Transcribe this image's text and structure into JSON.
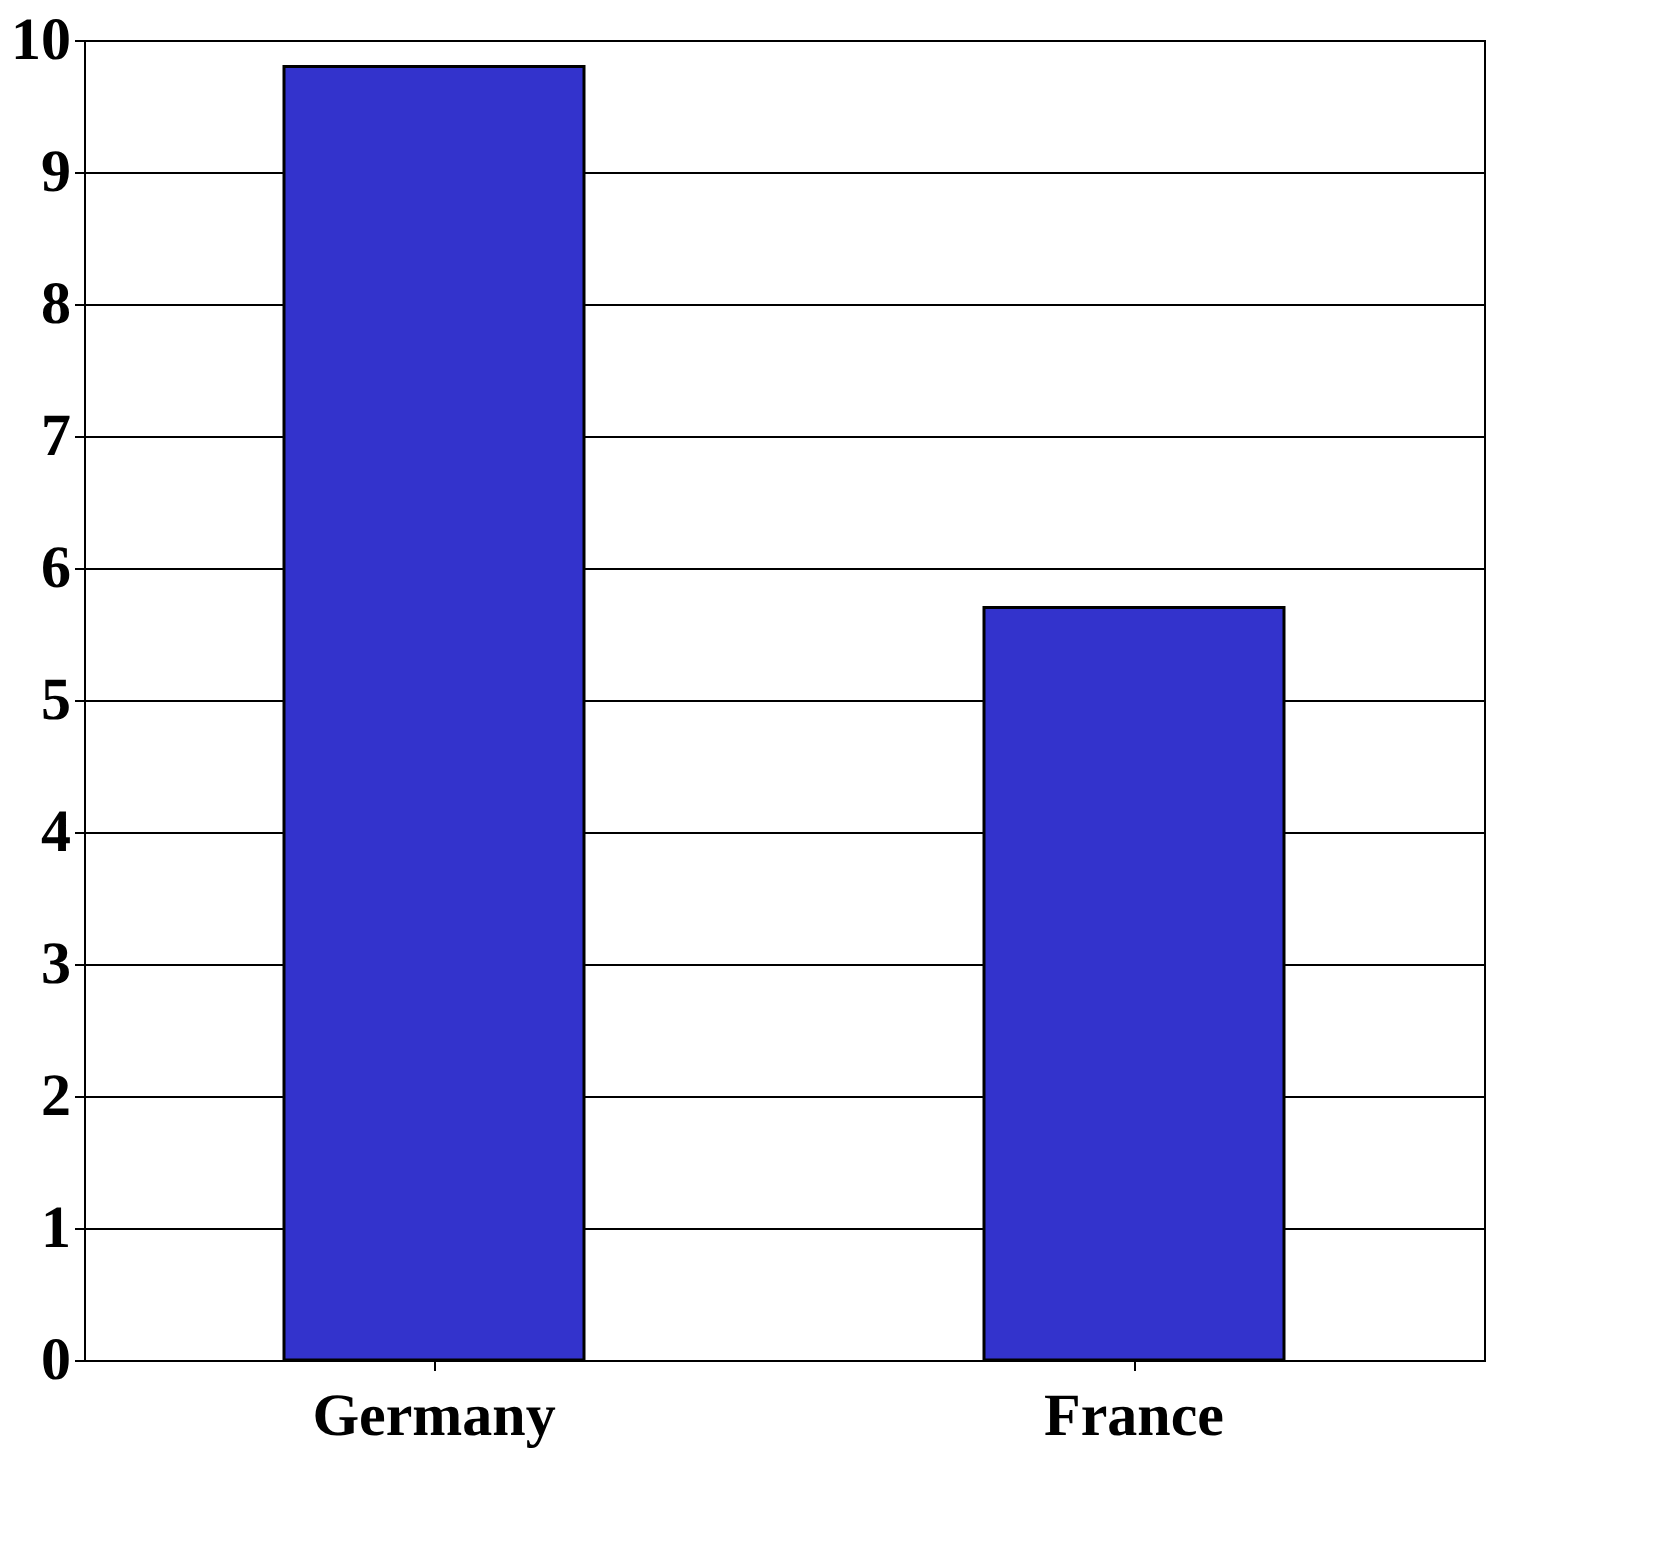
{
  "chart_data": {
    "type": "bar",
    "categories": [
      "Germany",
      "France"
    ],
    "values": [
      9.8,
      5.7
    ],
    "color": "#3333cc",
    "ylim": [
      0,
      10
    ],
    "yticks": [
      0,
      1,
      2,
      3,
      4,
      5,
      6,
      7,
      8,
      9,
      10
    ],
    "grid": "y"
  }
}
